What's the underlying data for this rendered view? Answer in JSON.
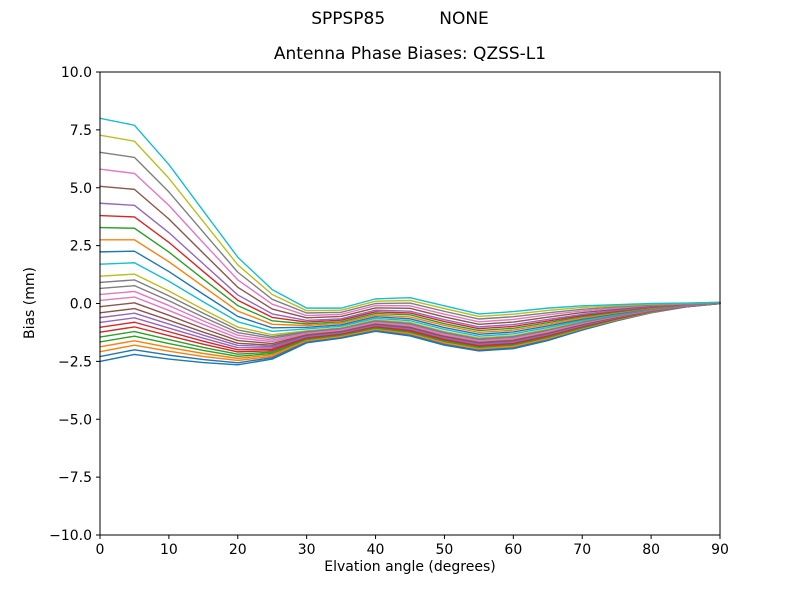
{
  "chart_data": {
    "type": "line",
    "suptitle": "SPPSP85          NONE",
    "title": "Antenna Phase Biases: QZSS-L1",
    "xlabel": "Elvation angle (degrees)",
    "ylabel": "Bias (mm)",
    "xlim": [
      0,
      90
    ],
    "ylim": [
      -10.0,
      10.0
    ],
    "xticks": [
      0,
      10,
      20,
      30,
      40,
      50,
      60,
      70,
      80,
      90
    ],
    "yticks": [
      -10.0,
      -7.5,
      -5.0,
      -2.5,
      0.0,
      2.5,
      5.0,
      7.5,
      10.0
    ],
    "ytick_labels": [
      "−10.0",
      "−7.5",
      "−5.0",
      "−2.5",
      "0.0",
      "2.5",
      "5.0",
      "7.5",
      "10.0"
    ],
    "grid": false,
    "legend": "none",
    "axis_color": "#000000",
    "text_color": "#000000",
    "line_width": 1.4,
    "colors": [
      "#1f77b4",
      "#ff7f0e",
      "#2ca02c",
      "#d62728",
      "#9467bd",
      "#8c564b",
      "#e377c2",
      "#7f7f7f",
      "#bcbd22",
      "#17becf"
    ],
    "x": [
      0,
      5,
      10,
      15,
      20,
      25,
      30,
      35,
      40,
      45,
      50,
      55,
      60,
      65,
      70,
      75,
      80,
      85,
      90
    ],
    "series": [
      [
        -2.5,
        -2.2,
        -2.4,
        -2.55,
        -2.65,
        -2.4,
        -1.7,
        -1.5,
        -1.2,
        -1.4,
        -1.8,
        -2.05,
        -1.95,
        -1.6,
        -1.15,
        -0.75,
        -0.4,
        -0.15,
        0.0
      ],
      [
        -2.08,
        -1.8,
        -2.06,
        -2.29,
        -2.46,
        -2.28,
        -1.64,
        -1.45,
        -1.14,
        -1.33,
        -1.73,
        -1.99,
        -1.89,
        -1.54,
        -1.11,
        -0.72,
        -0.38,
        -0.14,
        0.0
      ],
      [
        -1.66,
        -1.41,
        -1.73,
        -2.03,
        -2.28,
        -2.16,
        -1.58,
        -1.4,
        -1.09,
        -1.27,
        -1.66,
        -1.92,
        -1.82,
        -1.49,
        -1.07,
        -0.69,
        -0.37,
        -0.14,
        0.0
      ],
      [
        -1.24,
        -1.01,
        -1.39,
        -1.76,
        -2.09,
        -2.04,
        -1.52,
        -1.34,
        -1.03,
        -1.2,
        -1.6,
        -1.86,
        -1.76,
        -1.43,
        -1.02,
        -0.67,
        -0.35,
        -0.13,
        0.0
      ],
      [
        -0.82,
        -0.62,
        -1.06,
        -1.5,
        -1.91,
        -1.92,
        -1.46,
        -1.29,
        -0.98,
        -1.14,
        -1.53,
        -1.79,
        -1.69,
        -1.38,
        -0.98,
        -0.64,
        -0.34,
        -0.12,
        0.0
      ],
      [
        -0.4,
        -0.22,
        -0.72,
        -1.24,
        -1.72,
        -1.8,
        -1.4,
        -1.24,
        -0.92,
        -1.07,
        -1.46,
        -1.73,
        -1.63,
        -1.32,
        -0.94,
        -0.61,
        -0.32,
        -0.12,
        0.0
      ],
      [
        0.13,
        0.28,
        -0.3,
        -0.91,
        -1.49,
        -1.65,
        -1.33,
        -1.18,
        -0.85,
        -0.99,
        -1.38,
        -1.65,
        -1.55,
        -1.25,
        -0.89,
        -0.58,
        -0.3,
        -0.11,
        0.0
      ],
      [
        0.65,
        0.77,
        0.12,
        -0.59,
        -1.26,
        -1.5,
        -1.25,
        -1.11,
        -0.78,
        -0.91,
        -1.29,
        -1.57,
        -1.47,
        -1.18,
        -0.84,
        -0.54,
        -0.28,
        -0.1,
        0.02
      ],
      [
        1.18,
        1.27,
        0.54,
        -0.26,
        -1.02,
        -1.35,
        -1.18,
        -1.05,
        -0.71,
        -0.82,
        -1.21,
        -1.49,
        -1.39,
        -1.11,
        -0.78,
        -0.51,
        -0.26,
        -0.09,
        0.02
      ],
      [
        1.7,
        1.76,
        0.96,
        0.07,
        -0.79,
        -1.2,
        -1.1,
        -0.98,
        -0.64,
        -0.74,
        -1.12,
        -1.41,
        -1.31,
        -1.04,
        -0.73,
        -0.47,
        -0.24,
        -0.08,
        0.02
      ],
      [
        2.23,
        2.26,
        1.38,
        0.4,
        -0.56,
        -1.05,
        -1.03,
        -0.92,
        -0.57,
        -0.66,
        -1.04,
        -1.33,
        -1.23,
        -0.97,
        -0.68,
        -0.44,
        -0.22,
        -0.07,
        0.02
      ],
      [
        2.75,
        2.75,
        1.8,
        0.73,
        -0.33,
        -0.9,
        -0.95,
        -0.85,
        -0.5,
        -0.58,
        -0.95,
        -1.25,
        -1.15,
        -0.9,
        -0.63,
        -0.4,
        -0.2,
        -0.07,
        0.03
      ],
      [
        3.28,
        3.25,
        2.22,
        1.05,
        -0.09,
        -0.75,
        -0.88,
        -0.79,
        -0.43,
        -0.49,
        -0.87,
        -1.17,
        -1.07,
        -0.83,
        -0.57,
        -0.37,
        -0.18,
        -0.06,
        0.03
      ],
      [
        3.8,
        3.74,
        2.64,
        1.38,
        0.14,
        -0.6,
        -0.8,
        -0.72,
        -0.36,
        -0.41,
        -0.78,
        -1.09,
        -0.99,
        -0.76,
        -0.52,
        -0.33,
        -0.16,
        -0.05,
        0.03
      ],
      [
        4.33,
        4.24,
        3.06,
        1.71,
        0.37,
        -0.45,
        -0.73,
        -0.66,
        -0.29,
        -0.33,
        -0.7,
        -1.01,
        -0.91,
        -0.69,
        -0.47,
        -0.3,
        -0.14,
        -0.04,
        0.03
      ],
      [
        5.06,
        4.93,
        3.65,
        2.17,
        0.7,
        -0.24,
        -0.62,
        -0.56,
        -0.19,
        -0.21,
        -0.58,
        -0.9,
        -0.8,
        -0.59,
        -0.39,
        -0.25,
        -0.11,
        -0.03,
        0.04
      ],
      [
        5.8,
        5.62,
        4.24,
        2.62,
        1.02,
        -0.03,
        -0.52,
        -0.47,
        -0.09,
        -0.1,
        -0.46,
        -0.79,
        -0.69,
        -0.49,
        -0.32,
        -0.2,
        -0.08,
        -0.02,
        0.04
      ],
      [
        6.53,
        6.31,
        4.82,
        3.08,
        1.35,
        0.18,
        -0.41,
        -0.38,
        0.0,
        0.02,
        -0.34,
        -0.67,
        -0.57,
        -0.4,
        -0.25,
        -0.15,
        -0.06,
        0.0,
        0.04
      ],
      [
        7.27,
        7.01,
        5.41,
        3.54,
        1.67,
        0.39,
        -0.31,
        -0.29,
        0.1,
        0.13,
        -0.22,
        -0.56,
        -0.46,
        -0.3,
        -0.17,
        -0.1,
        -0.03,
        0.01,
        0.05
      ],
      [
        8.0,
        7.7,
        6.0,
        4.0,
        2.0,
        0.6,
        -0.2,
        -0.2,
        0.2,
        0.25,
        -0.1,
        -0.45,
        -0.35,
        -0.2,
        -0.1,
        -0.05,
        0.0,
        0.02,
        0.05
      ],
      [
        -2.29,
        -2.0,
        -2.23,
        -2.42,
        -2.56,
        -2.34,
        -1.67,
        -1.47,
        -1.17,
        -1.37,
        -1.77,
        -2.02,
        -1.92,
        -1.57,
        -1.13,
        -0.73,
        -0.39,
        -0.15,
        0.0
      ],
      [
        -1.87,
        -1.61,
        -1.9,
        -2.16,
        -2.37,
        -2.22,
        -1.61,
        -1.42,
        -1.12,
        -1.3,
        -1.7,
        -1.95,
        -1.85,
        -1.52,
        -1.09,
        -0.71,
        -0.38,
        -0.14,
        0.0
      ],
      [
        -1.45,
        -1.21,
        -1.56,
        -1.9,
        -2.19,
        -2.1,
        -1.55,
        -1.37,
        -1.06,
        -1.24,
        -1.63,
        -1.89,
        -1.79,
        -1.46,
        -1.05,
        -0.68,
        -0.36,
        -0.13,
        0.0
      ],
      [
        -1.03,
        -0.81,
        -1.22,
        -1.63,
        -2.0,
        -1.98,
        -1.49,
        -1.32,
        -1.0,
        -1.17,
        -1.56,
        -1.83,
        -1.73,
        -1.4,
        -1.0,
        -0.65,
        -0.34,
        -0.13,
        0.0
      ],
      [
        -0.61,
        -0.42,
        -0.89,
        -1.37,
        -1.81,
        -1.86,
        -1.43,
        -1.27,
        -0.95,
        -1.1,
        -1.49,
        -1.76,
        -1.66,
        -1.35,
        -0.96,
        -0.62,
        -0.33,
        -0.12,
        0.0
      ],
      [
        -0.14,
        0.03,
        -0.51,
        -1.08,
        -1.6,
        -1.73,
        -1.36,
        -1.21,
        -0.89,
        -1.03,
        -1.42,
        -1.69,
        -1.59,
        -1.29,
        -0.91,
        -0.59,
        -0.31,
        -0.11,
        0.0
      ],
      [
        0.39,
        0.52,
        -0.09,
        -0.75,
        -1.37,
        -1.58,
        -1.29,
        -1.14,
        -0.82,
        -0.95,
        -1.33,
        -1.61,
        -1.51,
        -1.22,
        -0.86,
        -0.56,
        -0.29,
        -0.11,
        0.01
      ],
      [
        0.91,
        1.02,
        0.33,
        -0.42,
        -1.14,
        -1.43,
        -1.21,
        -1.08,
        -0.75,
        -0.86,
        -1.25,
        -1.53,
        -1.43,
        -1.15,
        -0.81,
        -0.53,
        -0.27,
        -0.1,
        0.01
      ]
    ]
  }
}
